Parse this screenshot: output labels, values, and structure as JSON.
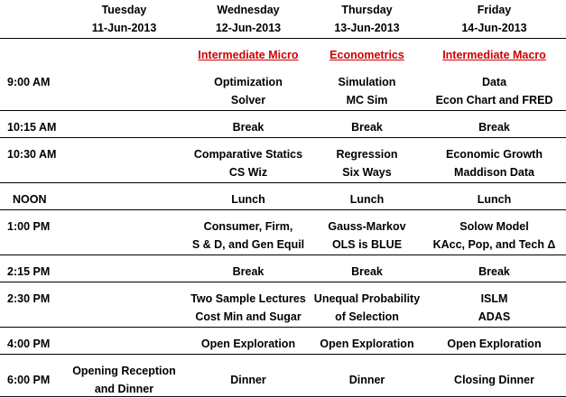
{
  "days": [
    {
      "name": "Tuesday",
      "date": "11-Jun-2013"
    },
    {
      "name": "Wednesday",
      "date": "12-Jun-2013"
    },
    {
      "name": "Thursday",
      "date": "13-Jun-2013"
    },
    {
      "name": "Friday",
      "date": "14-Jun-2013"
    }
  ],
  "courses": [
    "Intermediate Micro",
    "Econometrics",
    "Intermediate Macro"
  ],
  "rows": [
    {
      "time": "9:00 AM",
      "cells": [
        "",
        "Optimization\nSolver",
        "Simulation\nMC Sim",
        "Data\nEcon Chart and FRED"
      ]
    },
    {
      "time": "10:15 AM",
      "cells": [
        "",
        "Break",
        "Break",
        "Break"
      ]
    },
    {
      "time": "10:30 AM",
      "cells": [
        "",
        "Comparative Statics\nCS Wiz",
        "Regression\nSix Ways",
        "Economic Growth\nMaddison Data"
      ]
    },
    {
      "time": "NOON",
      "cells": [
        "",
        "Lunch",
        "Lunch",
        "Lunch"
      ]
    },
    {
      "time": "1:00 PM",
      "cells": [
        "",
        "Consumer, Firm,\nS & D, and Gen Equil",
        "Gauss-Markov\nOLS is BLUE",
        "Solow Model\nKAcc, Pop, and Tech Δ"
      ]
    },
    {
      "time": "2:15 PM",
      "cells": [
        "",
        "Break",
        "Break",
        "Break"
      ]
    },
    {
      "time": "2:30 PM",
      "cells": [
        "",
        "Two Sample Lectures\nCost Min and Sugar",
        "Unequal Probability\nof Selection",
        "ISLM\nADAS"
      ]
    },
    {
      "time": "4:00 PM",
      "cells": [
        "",
        "Open Exploration",
        "Open Exploration",
        "Open Exploration"
      ]
    },
    {
      "time": "6:00 PM",
      "cells": [
        "Opening Reception\nand Dinner",
        "Dinner",
        "Dinner",
        "Closing Dinner"
      ]
    }
  ],
  "colors": {
    "course_link": "#cc0000",
    "rule": "#000000"
  }
}
